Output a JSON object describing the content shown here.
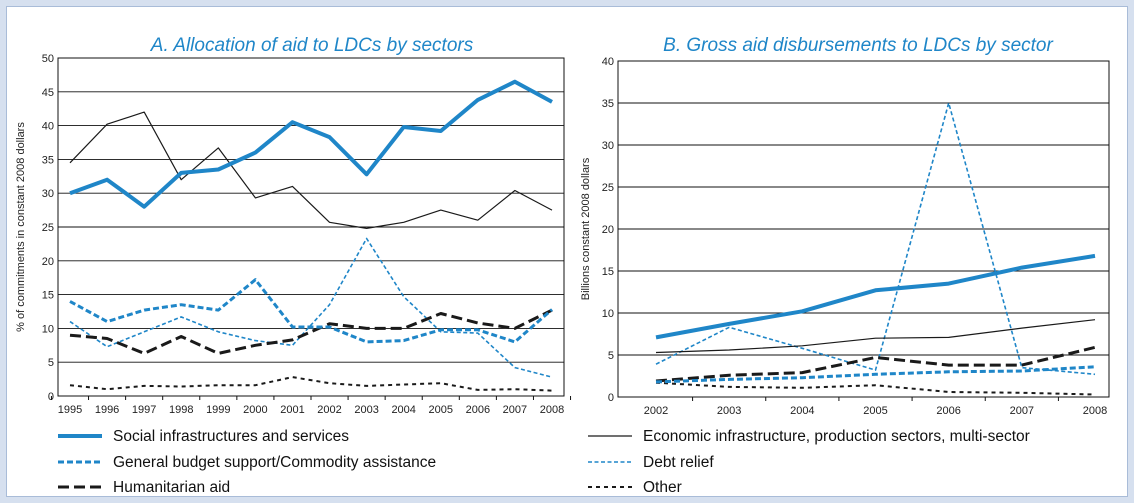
{
  "colors": {
    "blue": "#1f86c8",
    "black": "#1a1a1a",
    "frame_bg": "#d6e0ef"
  },
  "legend": [
    {
      "key": "social",
      "label": "Social infrastructures and services"
    },
    {
      "key": "budget",
      "label": "General budget support/Commodity assistance"
    },
    {
      "key": "humanitarian",
      "label": "Humanitarian aid"
    },
    {
      "key": "economic",
      "label": "Economic infrastructure, production sectors, multi-sector"
    },
    {
      "key": "debt",
      "label": "Debt relief"
    },
    {
      "key": "other",
      "label": "Other"
    }
  ],
  "chart_data": [
    {
      "type": "line",
      "title": "A. Allocation of aid to LDCs by sectors",
      "xlabel": "",
      "ylabel": "% of commitments in constant 2008 dollars",
      "x": [
        "1995",
        "1996",
        "1997",
        "1998",
        "1999",
        "2000",
        "2001",
        "2002",
        "2003",
        "2004",
        "2005",
        "2006",
        "2007",
        "2008"
      ],
      "ylim": [
        0,
        50
      ],
      "yticks": [
        0,
        5,
        10,
        15,
        20,
        25,
        30,
        35,
        40,
        45,
        50
      ],
      "grid": "horizontal",
      "series": [
        {
          "key": "social",
          "name": "Social infrastructures and services",
          "values": [
            30,
            32,
            28,
            33,
            33.5,
            36,
            40.5,
            38.3,
            32.8,
            39.8,
            39.2,
            43.8,
            46.5,
            43.5
          ]
        },
        {
          "key": "economic",
          "name": "Economic infrastructure, production sectors, multi-sector",
          "values": [
            34.5,
            40.2,
            42,
            32,
            36.7,
            29.3,
            31,
            25.7,
            24.8,
            25.7,
            27.5,
            26,
            30.4,
            27.5
          ]
        },
        {
          "key": "budget",
          "name": "General budget support/Commodity assistance",
          "values": [
            14,
            11,
            12.7,
            13.5,
            12.7,
            17.2,
            10.2,
            10.2,
            8,
            8.2,
            9.8,
            9.8,
            8,
            12.8
          ]
        },
        {
          "key": "debt",
          "name": "Debt relief",
          "values": [
            11,
            7.3,
            9.5,
            11.7,
            9.5,
            8.2,
            7.5,
            13.5,
            23.3,
            14.7,
            9.5,
            9.3,
            4.2,
            2.8
          ]
        },
        {
          "key": "humanitarian",
          "name": "Humanitarian aid",
          "values": [
            9,
            8.5,
            6.3,
            8.8,
            6.3,
            7.5,
            8.3,
            10.7,
            10,
            10,
            12.2,
            10.8,
            10,
            12.7
          ]
        },
        {
          "key": "other",
          "name": "Other",
          "values": [
            1.6,
            1,
            1.5,
            1.4,
            1.6,
            1.6,
            2.8,
            1.9,
            1.5,
            1.7,
            1.9,
            0.9,
            1,
            0.8
          ]
        }
      ]
    },
    {
      "type": "line",
      "title": "B. Gross aid disbursements to LDCs by sector",
      "xlabel": "",
      "ylabel": "Billions constant 2008 dollars",
      "x": [
        "2002",
        "2003",
        "2004",
        "2005",
        "2006",
        "2007",
        "2008"
      ],
      "ylim": [
        0,
        40
      ],
      "yticks": [
        0,
        5,
        10,
        15,
        20,
        25,
        30,
        35,
        40
      ],
      "grid": "horizontal",
      "series": [
        {
          "key": "social",
          "name": "Social infrastructures and services",
          "values": [
            7.1,
            8.7,
            10.2,
            12.7,
            13.5,
            15.4,
            16.8
          ]
        },
        {
          "key": "economic",
          "name": "Economic infrastructure, production sectors, multi-sector",
          "values": [
            5.3,
            5.6,
            6.1,
            7,
            7.1,
            8.2,
            9.2
          ]
        },
        {
          "key": "budget",
          "name": "General budget support/Commodity assistance",
          "values": [
            1.8,
            2.1,
            2.3,
            2.7,
            3,
            3.1,
            3.6
          ]
        },
        {
          "key": "debt",
          "name": "Debt relief",
          "values": [
            3.9,
            8.3,
            5.8,
            3.2,
            35,
            3.5,
            2.7
          ]
        },
        {
          "key": "humanitarian",
          "name": "Humanitarian aid",
          "values": [
            1.9,
            2.6,
            2.9,
            4.7,
            3.8,
            3.8,
            5.9
          ]
        },
        {
          "key": "other",
          "name": "Other",
          "values": [
            1.7,
            1.2,
            1.1,
            1.4,
            0.6,
            0.5,
            0.3
          ]
        }
      ]
    }
  ]
}
